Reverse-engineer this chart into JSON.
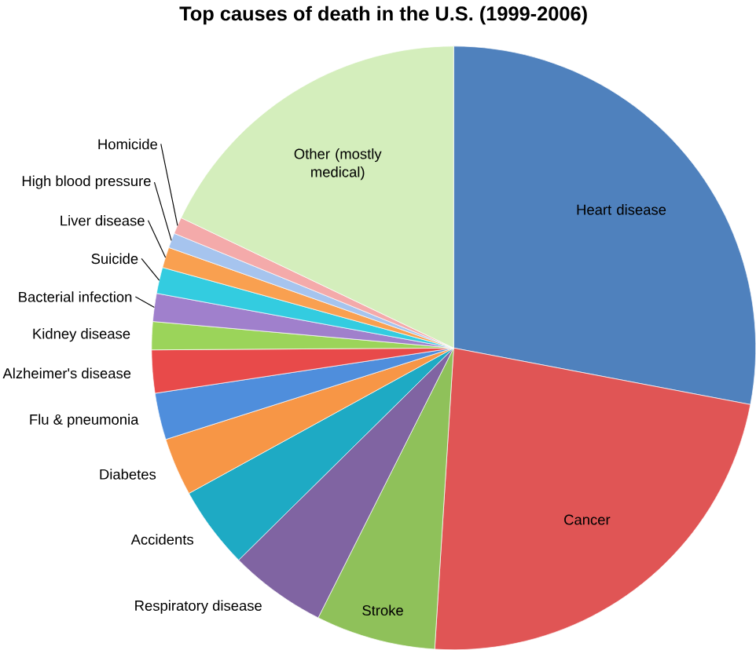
{
  "chart_data": {
    "type": "pie",
    "title": "Top causes of death in the U.S. (1999-2006)",
    "categories": [
      "Heart disease",
      "Cancer",
      "Stroke",
      "Respiratory disease",
      "Accidents",
      "Diabetes",
      "Flu & pneumonia",
      "Alzheimer's disease",
      "Kidney disease",
      "Bacterial infection",
      "Suicide",
      "Liver disease",
      "High blood pressure",
      "Homicide",
      "Other (mostly medical)"
    ],
    "values": [
      28,
      23,
      6.4,
      5.2,
      4.4,
      3.1,
      2.5,
      2.3,
      1.5,
      1.5,
      1.4,
      1.1,
      0.8,
      0.9,
      17.9
    ],
    "colors": [
      "#4f81bd",
      "#e05555",
      "#8fc15a",
      "#8064a2",
      "#1eaac4",
      "#f79646",
      "#4f8edc",
      "#e84a4a",
      "#9bd45a",
      "#a080cc",
      "#33cce0",
      "#f9a050",
      "#a6c4ee",
      "#f4aaaa",
      "#d4eebc"
    ]
  }
}
